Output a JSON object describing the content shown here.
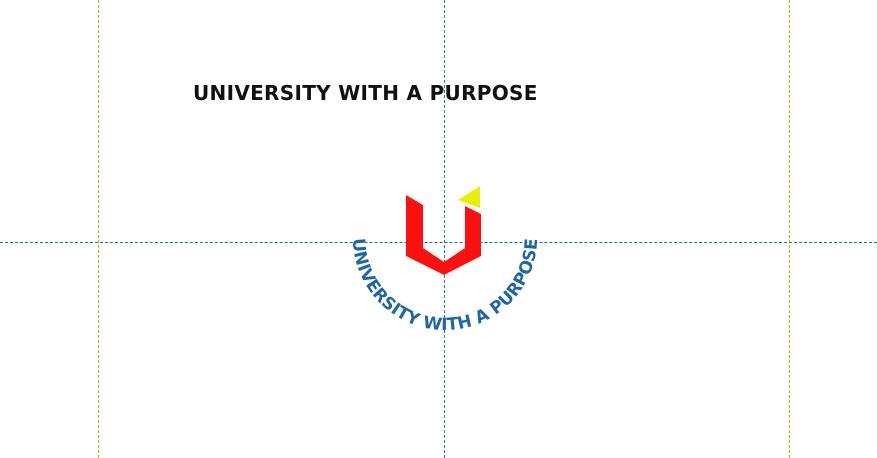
{
  "heading": {
    "text": "UNIVERSITY WITH A PURPOSE"
  },
  "logo": {
    "arc_text": "UNIVERSITY WITH A PURPOSE",
    "colors": {
      "u_shape": "#ff1010",
      "accent": "#e6f000",
      "arc_text": "#1f66a8"
    }
  },
  "guides": {
    "colors": {
      "outer": "#c8b400",
      "center": "#1f8a8a"
    }
  }
}
